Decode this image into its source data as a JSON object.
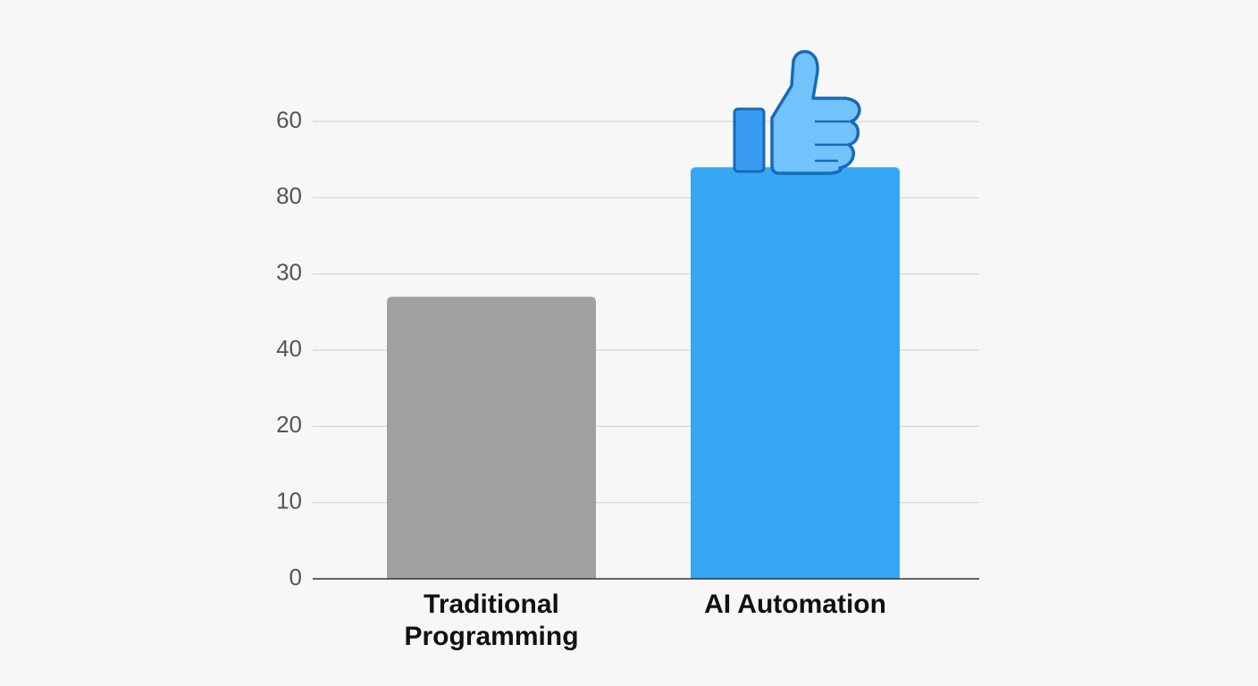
{
  "chart_data": {
    "type": "bar",
    "categories": [
      "Traditional Programming",
      "AI Automation"
    ],
    "series": [
      {
        "values": [
          37,
          54
        ],
        "colors": [
          "#a0a0a0",
          "#35a7f5"
        ]
      }
    ],
    "ylim": [
      0,
      60
    ],
    "yticks": [
      0,
      10,
      20,
      {
        "value": 30,
        "label": "40"
      },
      {
        "value": 40,
        "label": "30"
      },
      {
        "value": 50,
        "label": "80"
      },
      60
    ],
    "grid": true
  }
}
